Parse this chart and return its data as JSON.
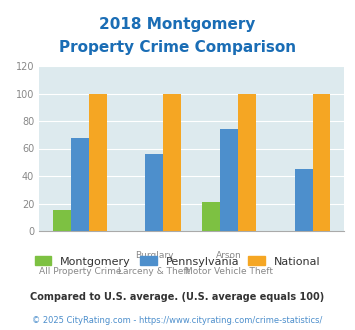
{
  "title_line1": "2018 Montgomery",
  "title_line2": "Property Crime Comparison",
  "title_color": "#1a6db5",
  "cat_line1": [
    "All Property Crime",
    "Burglary",
    "Larceny & Theft",
    "Arson"
  ],
  "cat_line2": [
    "",
    "",
    "",
    "Motor Vehicle Theft"
  ],
  "montgomery": [
    15,
    0,
    21,
    0
  ],
  "pennsylvania": [
    68,
    56,
    74,
    45
  ],
  "national": [
    100,
    100,
    100,
    100
  ],
  "montgomery_color": "#7dc142",
  "pennsylvania_color": "#4d8fcc",
  "national_color": "#f5a623",
  "ylim": [
    0,
    120
  ],
  "yticks": [
    0,
    20,
    40,
    60,
    80,
    100,
    120
  ],
  "bg_color": "#ddeaee",
  "fig_bg": "#ffffff",
  "legend_labels": [
    "Montgomery",
    "Pennsylvania",
    "National"
  ],
  "footnote1": "Compared to U.S. average. (U.S. average equals 100)",
  "footnote2": "© 2025 CityRating.com - https://www.cityrating.com/crime-statistics/",
  "footnote1_color": "#333333",
  "footnote2_color": "#4d8fcc"
}
